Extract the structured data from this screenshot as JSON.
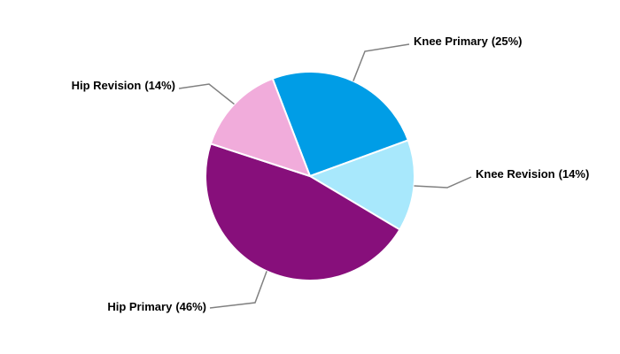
{
  "chart_data": {
    "type": "pie",
    "categories": [
      "Knee Primary",
      "Knee Revision",
      "Hip Primary",
      "Hip Revision"
    ],
    "values": [
      25,
      14,
      46,
      14
    ],
    "value_labels": [
      "(25%)",
      "(14%)",
      "(46%)",
      "(14%)"
    ],
    "colors": [
      "#009de6",
      "#a8e8fc",
      "#870f7b",
      "#f1acdb"
    ]
  }
}
